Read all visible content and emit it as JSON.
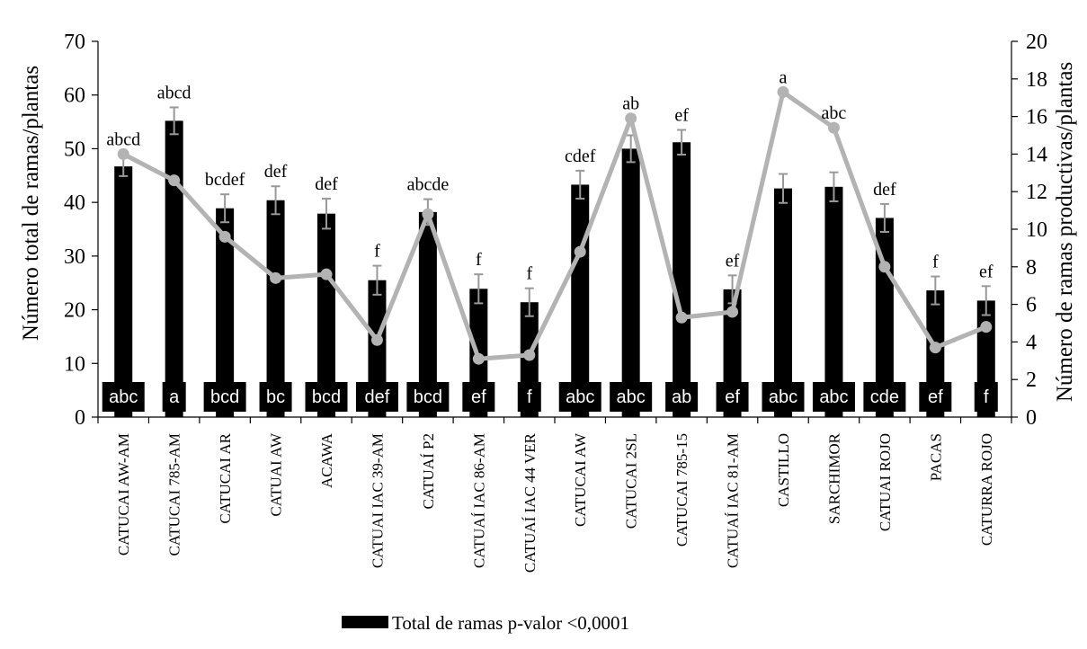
{
  "chart_data": {
    "type": "bar",
    "categories": [
      "CATUCAI AW-AM",
      "CATUCAI 785-AM",
      "CATUCAI AR",
      "CATUAI AW",
      "ACAWA",
      "CATUAI IAC 39-AM",
      "CATUAÍ P2",
      "CATUAÍ IAC 86-AM",
      "CATUAÍ IAC 44 VER",
      "CATUCAI AW",
      "CATUCAI 2SL",
      "CATUCAI 785-15",
      "CATUAÍ IAC 81-AM",
      "CASTILLO",
      "SARCHIMOR",
      "CATUAI ROJO",
      "PACAS",
      "CATURRA ROJO"
    ],
    "series": [
      {
        "name": "Total de ramas p-valor <0,0001",
        "type": "bar",
        "axis": "left",
        "color": "#000000",
        "values": [
          46.7,
          55.2,
          38.9,
          40.4,
          37.9,
          25.5,
          38.2,
          23.9,
          21.4,
          43.3,
          50.0,
          51.2,
          23.8,
          42.6,
          42.9,
          37.1,
          23.6,
          21.7
        ],
        "errors": [
          1.8,
          2.5,
          2.6,
          2.6,
          2.8,
          2.7,
          2.4,
          2.7,
          2.6,
          2.6,
          2.5,
          2.3,
          2.6,
          2.7,
          2.7,
          2.6,
          2.6,
          2.7
        ],
        "letters": [
          "abc",
          "a",
          "bcd",
          "bc",
          "bcd",
          "def",
          "bcd",
          "ef",
          "f",
          "abc",
          "abc",
          "ab",
          "ef",
          "abc",
          "abc",
          "cde",
          "ef",
          "f"
        ]
      },
      {
        "type": "line",
        "axis": "right",
        "color": "#b3b3b3",
        "values": [
          14.0,
          12.6,
          9.6,
          7.4,
          7.6,
          4.1,
          10.8,
          3.1,
          3.3,
          8.8,
          15.9,
          5.3,
          5.6,
          17.3,
          15.4,
          8.0,
          3.7,
          4.8
        ],
        "letters": [
          "abcd",
          "abcd",
          "bcdef",
          "def",
          "def",
          "f",
          "abcde",
          "f",
          "f",
          "cdef",
          "ab",
          "ef",
          "ef",
          "a",
          "abc",
          "def",
          "f",
          "ef"
        ]
      }
    ],
    "ylabel": "Número total de ramas/plantas",
    "y2label": "Número de ramas productivas/plantas",
    "ylim": [
      0,
      70
    ],
    "y2lim": [
      0,
      20
    ],
    "yticks": [
      0,
      10,
      20,
      30,
      40,
      50,
      60,
      70
    ],
    "y2ticks": [
      0,
      2,
      4,
      6,
      8,
      10,
      12,
      14,
      16,
      18,
      20
    ],
    "legend": {
      "label": "Total de ramas p-valor <0,0001",
      "position": "bottom"
    },
    "grid": false,
    "colors": {
      "bar": "#000000",
      "line": "#b3b3b3",
      "errorbar": "#999999",
      "axis": "#000000"
    }
  }
}
